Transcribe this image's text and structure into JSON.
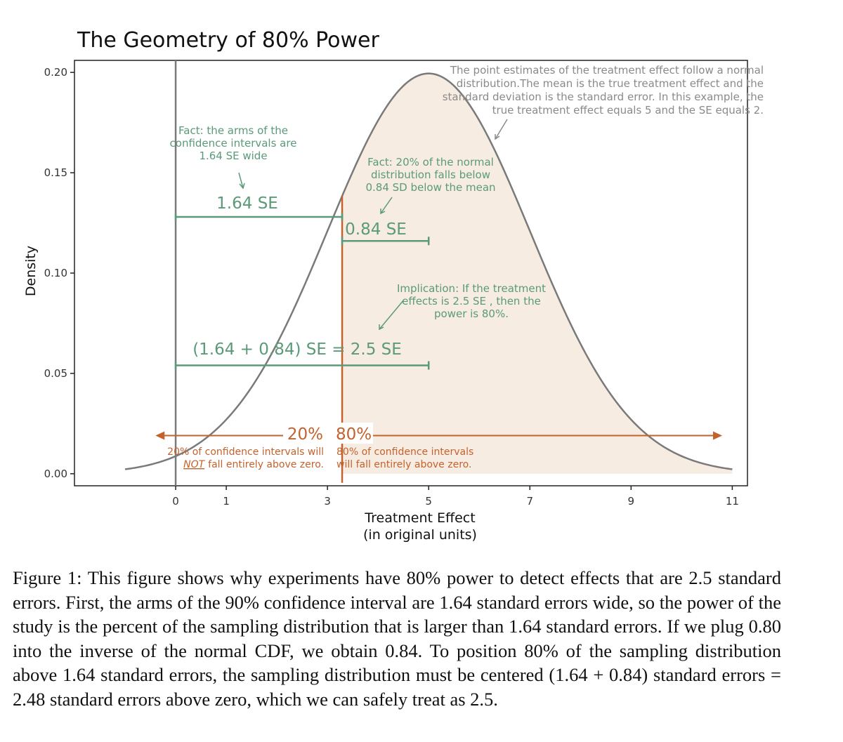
{
  "chart_data": {
    "type": "area",
    "title": "The Geometry of 80% Power",
    "xlabel": "Treatment Effect",
    "xlabel_sub": "(in original units)",
    "ylabel": "Density",
    "xlim": [
      -2.0,
      11.3
    ],
    "ylim": [
      -0.006,
      0.206
    ],
    "x_ticks": [
      0,
      1,
      3,
      5,
      7,
      9,
      11
    ],
    "x_tick_labels": [
      "0",
      "1",
      "3",
      "5",
      "7",
      "9",
      "11"
    ],
    "y_ticks": [
      0.0,
      0.05,
      0.1,
      0.15,
      0.2
    ],
    "y_tick_labels": [
      "0.00",
      "0.05",
      "0.10",
      "0.15",
      "0.20"
    ],
    "grid": false,
    "distribution": {
      "name": "normal",
      "mean": 5,
      "sd": 2,
      "x_from": -1,
      "x_to": 11
    },
    "shaded_region": {
      "from": 3.29,
      "to": 11
    },
    "zero_line_x": 0,
    "critical_value_x": 3.29,
    "brackets": [
      {
        "label": "1.64 SE",
        "x_from": 0,
        "x_to": 3.29,
        "y": 0.128
      },
      {
        "label": "0.84 SE",
        "x_from": 3.29,
        "x_to": 5,
        "y": 0.116
      },
      {
        "label": "(1.64 + 0.84) SE = 2.5 SE",
        "x_from": 0,
        "x_to": 5,
        "y": 0.054
      }
    ],
    "arrows": [
      {
        "label": "20%",
        "direction": "left",
        "x_to": -0.4,
        "y": 0.019
      },
      {
        "label": "80%",
        "direction": "right",
        "x_to": 10.8,
        "y": 0.019
      }
    ],
    "annotations": [
      {
        "id": "note-normal",
        "lines": [
          "The point estimates of the treatment effect follow a normal",
          "distribution.The mean is the true treatment effect and the",
          "standard deviation is the standard error. In this example, the",
          "true treatment effect equals 5 and the SE equals 2."
        ]
      },
      {
        "id": "note-arms",
        "lines": [
          "Fact: the arms of the",
          "confidence intervals are",
          "1.64 SE wide"
        ]
      },
      {
        "id": "note-20pct",
        "lines": [
          "Fact: 20% of the normal",
          "distribution falls below",
          "0.84 SD below the mean"
        ]
      },
      {
        "id": "note-implication",
        "lines": [
          "Implication: If the treatment",
          "effects is 2.5 SE , then the",
          "power is 80%."
        ]
      },
      {
        "id": "note-left",
        "lines": [
          "20% of confidence intervals will",
          "fall entirely above zero."
        ],
        "emphasis": "NOT"
      },
      {
        "id": "note-right",
        "lines": [
          "80% of confidence intervals",
          "will fall entirely above zero."
        ]
      }
    ]
  },
  "caption": "Figure 1: This figure shows why experiments have 80% power to detect effects that are 2.5 standard errors. First, the arms of the 90% confidence interval are 1.64 standard errors wide, so the power of the study is the percent of the sampling distribution that is larger than 1.64 standard errors. If we plug 0.80 into the inverse of the normal CDF, we obtain 0.84. To position 80% of the sampling distribution above 1.64 standard errors, the sampling distribution must be centered (1.64 + 0.84) standard errors = 2.48 standard errors above zero, which we can safely treat as 2.5.",
  "colors": {
    "curve": "#7a7a7a",
    "fill": "#f7ece2",
    "green": "#5b9a78",
    "orange": "#c4622d",
    "axis": "#222222",
    "note_gray": "#8a8a8a"
  }
}
